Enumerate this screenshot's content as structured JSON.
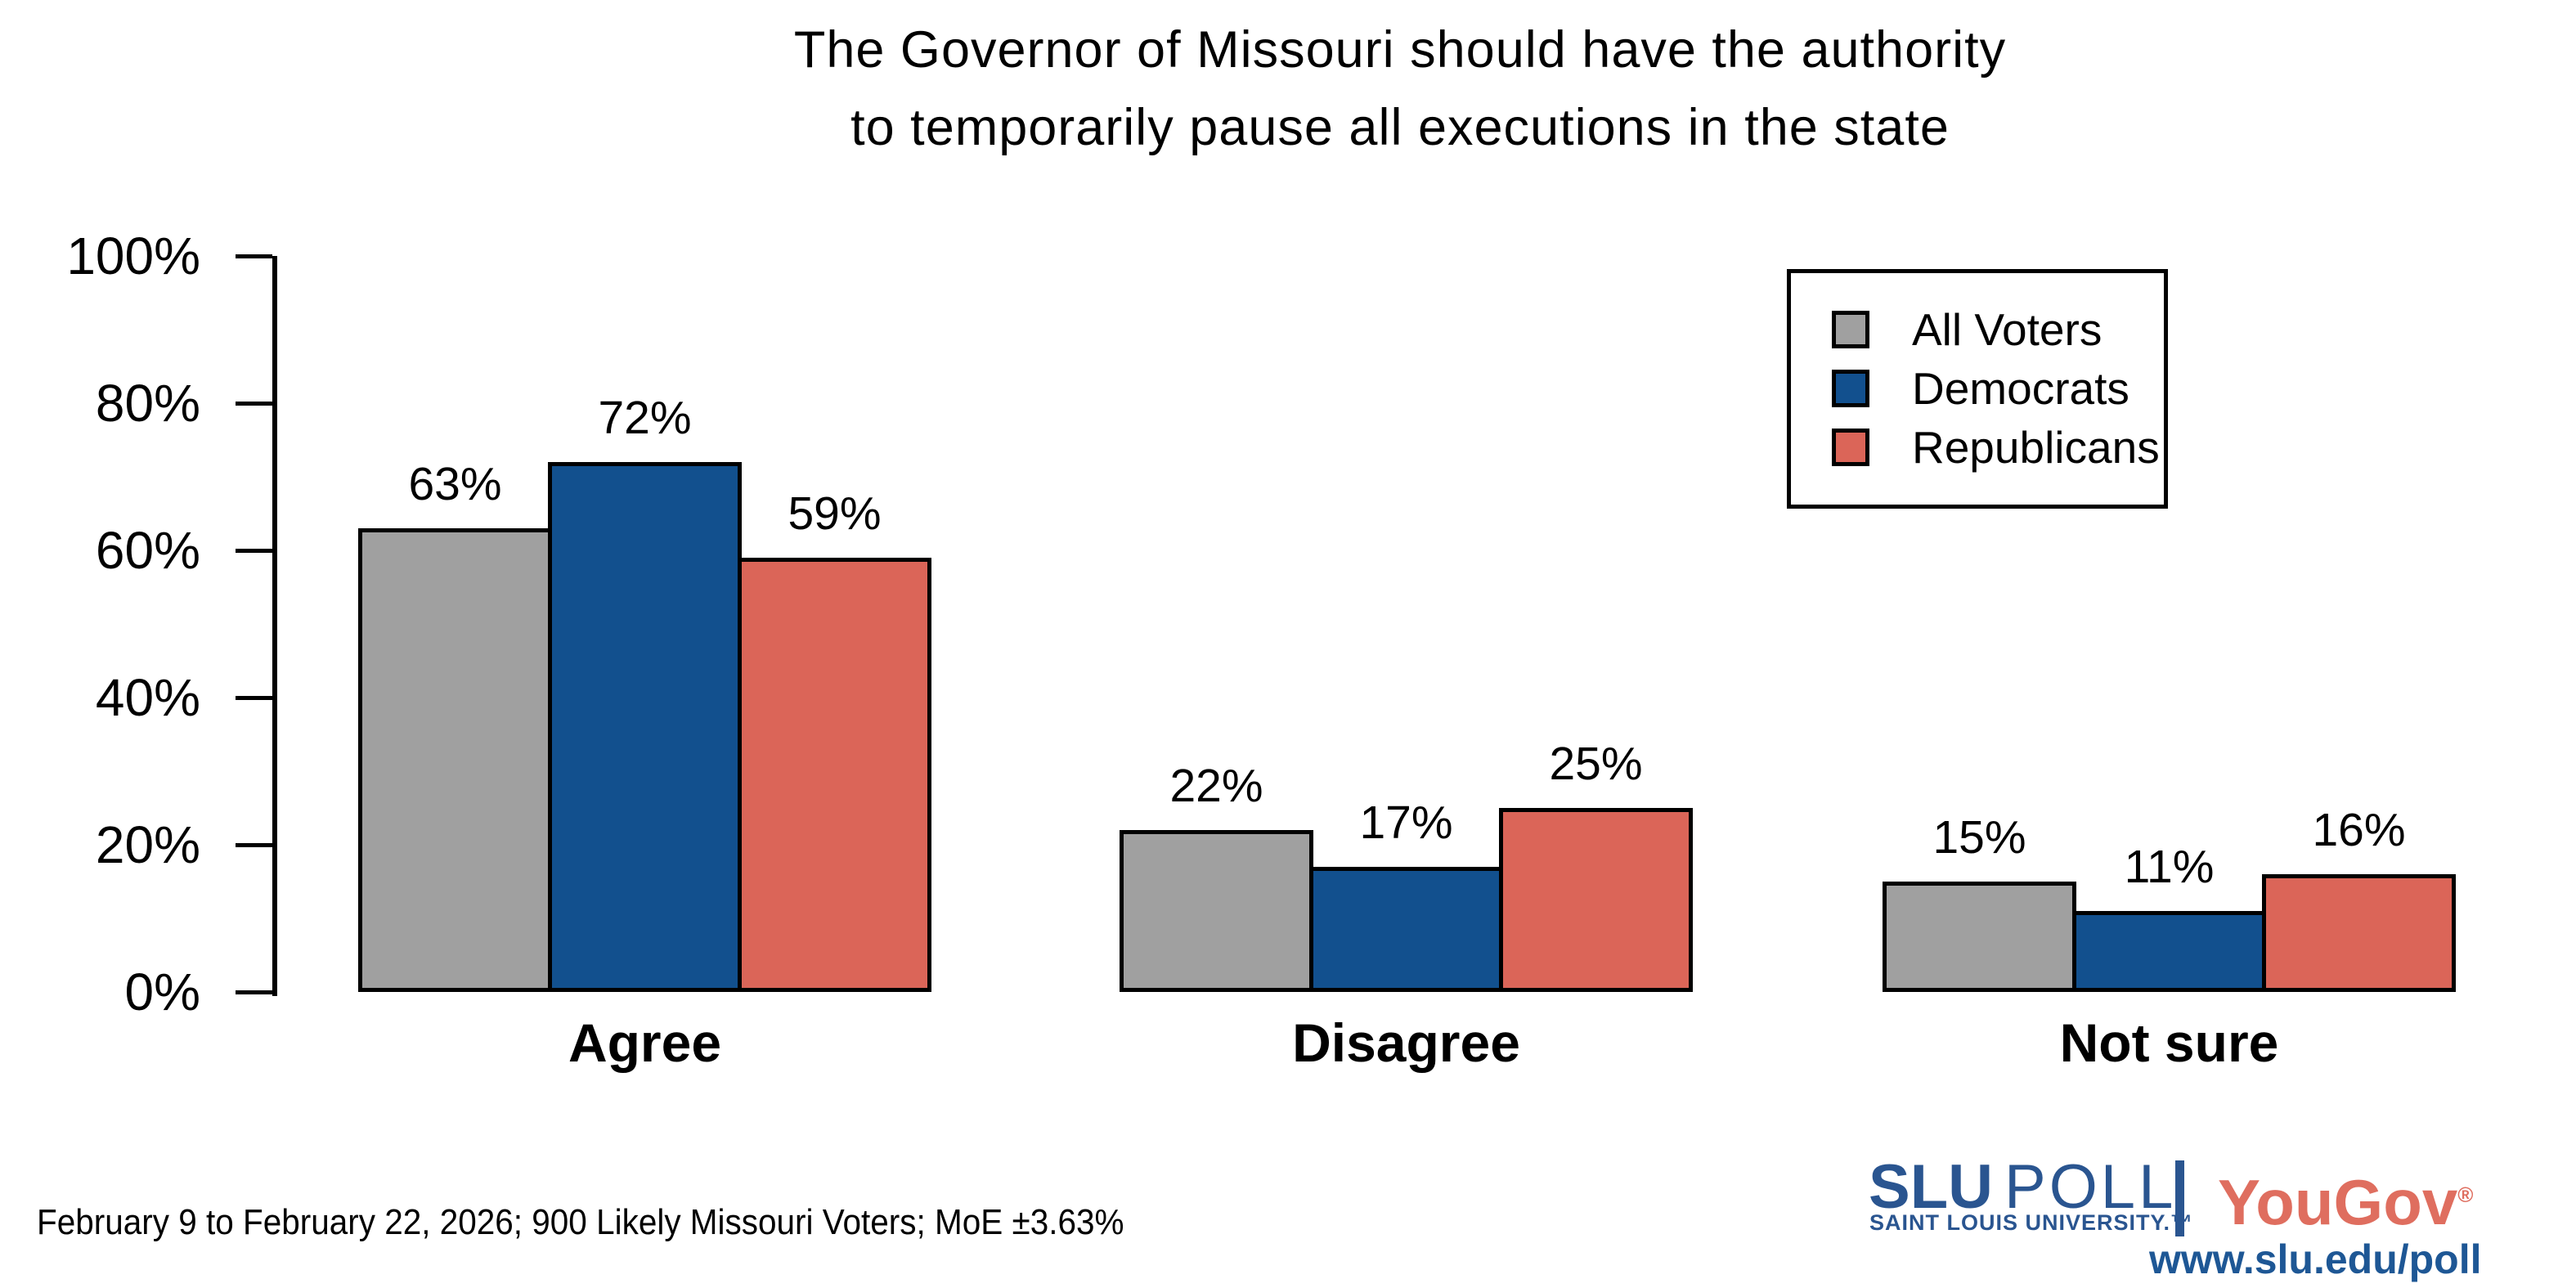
{
  "title": {
    "line1": "The Governor of Missouri should have the authority",
    "line2": "to temporarily pause all executions in the state"
  },
  "footer": {
    "note": "February 9 to February 22, 2026; 900 Likely Missouri Voters; MoE ±3.63%"
  },
  "branding": {
    "slu": "SLU",
    "poll": "POLL",
    "slu_sub": "SAINT LOUIS UNIVERSITY.™",
    "yougov": "YouGov",
    "yougov_reg": "®",
    "url": "www.slu.edu/poll",
    "slu_blue": "#2A5590",
    "yougov_red": "#DF6E5F",
    "url_blue": "#1E5795"
  },
  "chart_data": {
    "type": "bar",
    "title": "The Governor of Missouri should have the authority to temporarily pause all executions in the state",
    "categories": [
      "Agree",
      "Disagree",
      "Not sure"
    ],
    "series": [
      {
        "name": "All Voters",
        "color": "#A0A0A0",
        "values": [
          63,
          22,
          15
        ]
      },
      {
        "name": "Democrats",
        "color": "#12508E",
        "values": [
          72,
          17,
          11
        ]
      },
      {
        "name": "Republicans",
        "color": "#DB6558",
        "values": [
          59,
          25,
          16
        ]
      }
    ],
    "value_suffix": "%",
    "bar_labels": true,
    "xlabel": "",
    "ylabel": "",
    "ylim": [
      0,
      100
    ],
    "yticks": [
      "0%",
      "20%",
      "40%",
      "60%",
      "80%",
      "100%"
    ],
    "grid": false,
    "legend_position": "top-right",
    "bar_outline_color": "#000000"
  }
}
